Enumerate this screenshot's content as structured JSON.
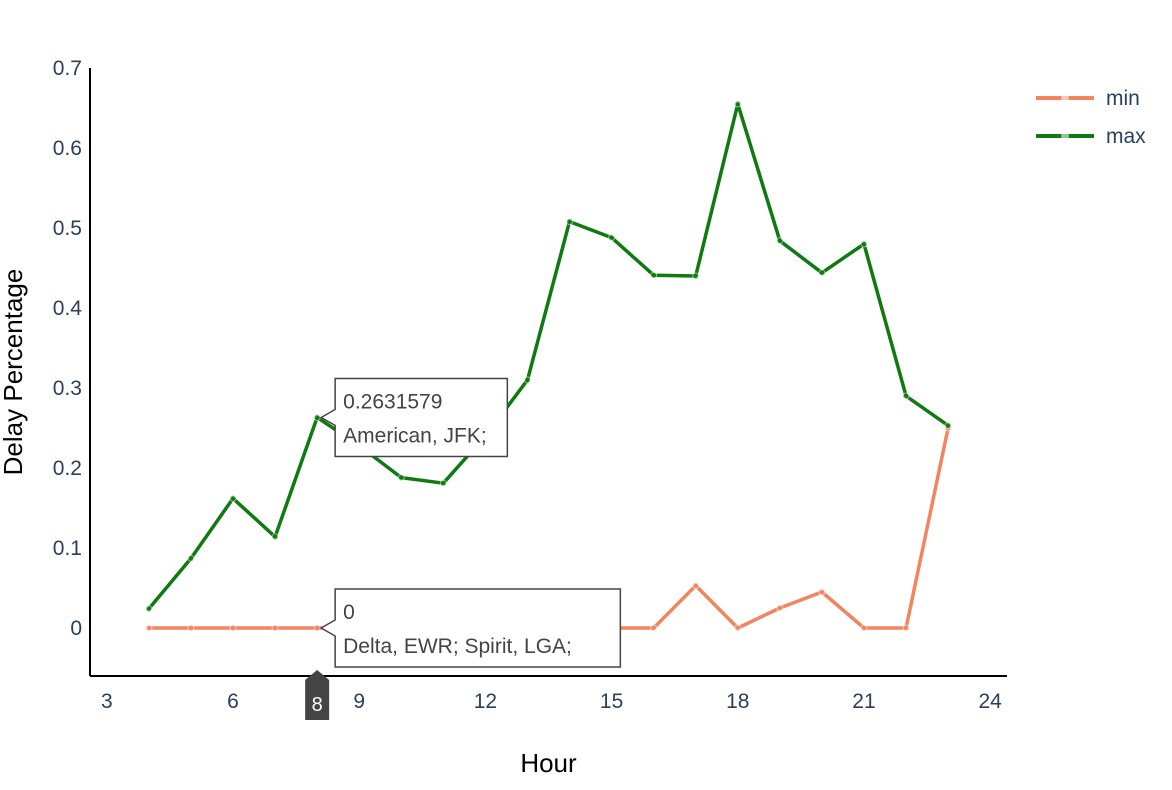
{
  "chart_data": {
    "type": "line",
    "xlabel": "Hour",
    "ylabel": "Delay Percentage",
    "xlim": [
      2.6,
      24.4
    ],
    "ylim": [
      -0.06,
      0.7
    ],
    "xticks": [
      3,
      6,
      9,
      12,
      15,
      18,
      21,
      24
    ],
    "yticks": [
      0,
      0.1,
      0.2,
      0.3,
      0.4,
      0.5,
      0.6,
      0.7
    ],
    "grid": false,
    "legend": "top-right",
    "series": [
      {
        "name": "min",
        "color": "#f4845f",
        "x": [
          4,
          5,
          6,
          7,
          8,
          9,
          10,
          11,
          12,
          13,
          14,
          15,
          16,
          17,
          18,
          19,
          20,
          21,
          22,
          23
        ],
        "y": [
          0,
          0,
          0,
          0,
          0,
          0,
          0,
          0,
          0,
          0,
          0,
          0,
          0,
          0.053,
          0,
          0.025,
          0.045,
          0,
          0,
          0.25
        ]
      },
      {
        "name": "max",
        "color": "#0f7a0f",
        "x": [
          4,
          5,
          6,
          7,
          8,
          9,
          10,
          11,
          12,
          13,
          14,
          15,
          16,
          17,
          18,
          19,
          20,
          21,
          22,
          23
        ],
        "y": [
          0.024,
          0.087,
          0.162,
          0.114,
          0.2631579,
          0.228,
          0.188,
          0.181,
          0.24,
          0.31,
          0.508,
          0.488,
          0.441,
          0.44,
          0.655,
          0.484,
          0.444,
          0.48,
          0.29,
          0.253
        ]
      }
    ],
    "hover": {
      "x": 8,
      "x_label": "8",
      "tooltips": [
        {
          "series": "max",
          "value_text": "0.2631579",
          "detail": "American, JFK;"
        },
        {
          "series": "min",
          "value_text": "0",
          "detail": "Delta, EWR; Spirit, LGA;"
        }
      ]
    }
  }
}
